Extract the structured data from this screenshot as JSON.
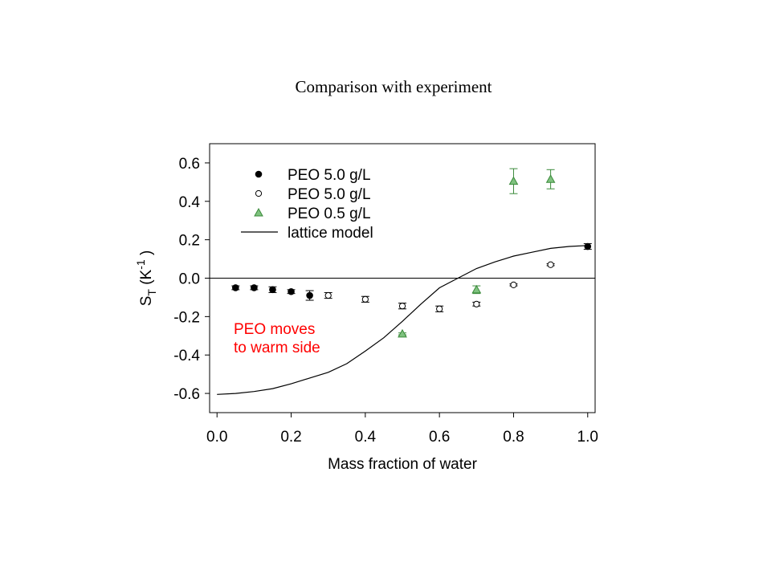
{
  "slide": {
    "title": "Comparison with experiment"
  },
  "chart_data": {
    "type": "scatter",
    "title": "",
    "xlabel": "Mass fraction of water",
    "ylabel": "S",
    "ylabel_sub": "T",
    "ylabel_unit_prefix": "(K",
    "ylabel_unit_sup": "-1",
    "ylabel_unit_suffix": ")",
    "xlim": [
      -0.02,
      1.02
    ],
    "ylim": [
      -0.7,
      0.7
    ],
    "xticks": [
      0.0,
      0.2,
      0.4,
      0.6,
      0.8,
      1.0
    ],
    "xtick_labels": [
      "0.0",
      "0.2",
      "0.4",
      "0.6",
      "0.8",
      "1.0"
    ],
    "yticks": [
      0.6,
      0.4,
      0.2,
      0.0,
      -0.2,
      -0.4,
      -0.6
    ],
    "ytick_labels": [
      "0.6",
      "0.4",
      "0.2",
      "0.0",
      "-0.2",
      "-0.4",
      "-0.6"
    ],
    "grid": false,
    "reference_line_y": 0.0,
    "legend_position": "top-left",
    "annotation": {
      "lines": [
        "PEO moves",
        "to warm side"
      ],
      "color": "#ff0000"
    },
    "series": [
      {
        "name": "PEO 5.0 g/L",
        "marker": "filled-circle",
        "color": "#000000",
        "x": [
          0.05,
          0.1,
          0.15,
          0.2,
          0.25,
          1.0
        ],
        "y": [
          -0.05,
          -0.05,
          -0.06,
          -0.07,
          -0.09,
          0.165
        ],
        "yerr": [
          0.01,
          0.01,
          0.015,
          0.01,
          0.025,
          0.015
        ]
      },
      {
        "name": "PEO 5.0 g/L",
        "marker": "open-circle",
        "color": "#000000",
        "x": [
          0.3,
          0.4,
          0.5,
          0.6,
          0.7,
          0.8,
          0.9
        ],
        "y": [
          -0.09,
          -0.11,
          -0.145,
          -0.16,
          -0.135,
          -0.035,
          0.07
        ],
        "yerr": [
          0.015,
          0.015,
          0.015,
          0.015,
          0.01,
          0.005,
          0.005
        ]
      },
      {
        "name": "PEO 0.5 g/L",
        "marker": "triangle",
        "color": "#3a8a3a",
        "fill": "#7fc27f",
        "x": [
          0.5,
          0.7,
          0.8,
          0.9
        ],
        "y": [
          -0.29,
          -0.06,
          0.505,
          0.515
        ],
        "yerr": [
          0.005,
          0.02,
          0.065,
          0.05
        ]
      },
      {
        "name": "lattice model",
        "marker": "line",
        "color": "#000000",
        "x": [
          0.0,
          0.05,
          0.1,
          0.15,
          0.2,
          0.25,
          0.3,
          0.35,
          0.4,
          0.45,
          0.5,
          0.55,
          0.6,
          0.65,
          0.7,
          0.75,
          0.8,
          0.85,
          0.9,
          0.95,
          1.0
        ],
        "y": [
          -0.605,
          -0.6,
          -0.59,
          -0.575,
          -0.55,
          -0.52,
          -0.49,
          -0.445,
          -0.38,
          -0.31,
          -0.225,
          -0.135,
          -0.05,
          0.0,
          0.05,
          0.085,
          0.115,
          0.135,
          0.155,
          0.165,
          0.17
        ]
      }
    ]
  }
}
